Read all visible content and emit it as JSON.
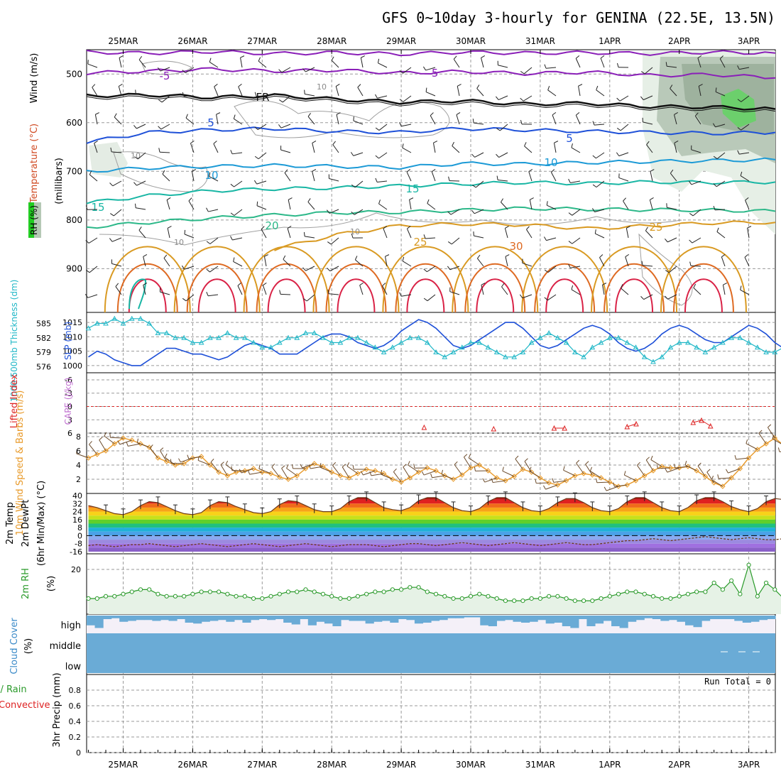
{
  "title": "GFS 0~10day 3-hourly for GENINA (22.5E, 13.5N)",
  "chart_data": {
    "type": "meteogram",
    "x": {
      "date_labels": [
        "25MAR",
        "26MAR",
        "27MAR",
        "28MAR",
        "29MAR",
        "30MAR",
        "31MAR",
        "1APR",
        "2APR",
        "3APR"
      ],
      "start": "2025-03-24T12:00",
      "step_hours": 3
    },
    "panels": [
      {
        "name": "upper-air",
        "labels": {
          "wind": "Wind (m/s)",
          "temperature": "Temperature (°C)",
          "rh": "RH (%)",
          "axis": "(millibars)"
        },
        "ylim": [
          450,
          990
        ],
        "yticks": [
          500,
          600,
          700,
          800,
          900
        ],
        "isotherms": [
          {
            "temp": -5,
            "label": "-5",
            "color": "#8a1fb8",
            "levels": [
              455,
              457,
              454,
              458,
              456,
              459,
              455,
              457,
              456,
              458,
              455,
              457
            ]
          },
          {
            "temp": -5,
            "label": "-5",
            "color": "#8a1fb8",
            "levels": [
              498,
              494,
              490,
              494,
              492,
              498,
              495,
              499,
              496,
              503,
              501,
              508
            ]
          },
          {
            "temp": 0,
            "label": "FR",
            "color": "#111111",
            "levels": [
              545,
              543,
              548,
              544,
              552,
              558,
              555,
              562,
              560,
              567,
              568,
              572
            ]
          },
          {
            "temp": 5,
            "label": "5",
            "color": "#1e50d8",
            "levels": [
              640,
              620,
              615,
              612,
              618,
              620,
              612,
              615,
              618,
              620,
              622,
              620
            ]
          },
          {
            "temp": 10,
            "label": "10",
            "color": "#1c9ad6",
            "levels": [
              700,
              693,
              690,
              688,
              690,
              692,
              684,
              685,
              682,
              680,
              678,
              676
            ]
          },
          {
            "temp": 15,
            "label": "15",
            "color": "#18b6a4",
            "levels": [
              765,
              750,
              740,
              736,
              734,
              730,
              726,
              723,
              725,
              722,
              723,
              722
            ]
          },
          {
            "temp": 20,
            "label": "20",
            "color": "#2cb889",
            "levels": [
              815,
              805,
              796,
              790,
              785,
              784,
              780,
              776,
              778,
              779,
              780,
              782
            ]
          },
          {
            "temp": 25,
            "label": "25",
            "color": "#d99a22",
            "levels": [
              null,
              null,
              null,
              860,
              830,
              812,
              808,
              810,
              818,
              812,
              806,
              805
            ]
          },
          {
            "temp": 30,
            "label": "30",
            "color": "#de6a22",
            "levels": []
          }
        ],
        "contour_labels": [
          "10",
          "10",
          "10",
          "10"
        ]
      },
      {
        "name": "slp-thickness",
        "labels": {
          "slp": "SLP (mb)",
          "thickness": "1000-500mb Thickness (dm)"
        },
        "slp_ticks": [
          1000,
          1005,
          1010,
          1015
        ],
        "thickness_ticks": [
          576,
          579,
          582,
          585
        ],
        "slp_mb": [
          1003,
          1005,
          1004,
          1002,
          1001,
          1000,
          1000,
          1002,
          1004,
          1006,
          1006,
          1005,
          1004,
          1004,
          1003,
          1002,
          1003,
          1005,
          1007,
          1008,
          1007,
          1006,
          1004,
          1004,
          1004,
          1006,
          1008,
          1010,
          1011,
          1011,
          1010,
          1008,
          1007,
          1006,
          1007,
          1009,
          1012,
          1014,
          1016,
          1015,
          1013,
          1010,
          1007,
          1006,
          1007,
          1009,
          1011,
          1013,
          1015,
          1015,
          1013,
          1010,
          1007,
          1006,
          1007,
          1009,
          1011,
          1013,
          1014,
          1013,
          1011,
          1008,
          1006,
          1005,
          1006,
          1008,
          1011,
          1013,
          1014,
          1013,
          1011,
          1009,
          1008,
          1008,
          1010,
          1012,
          1014,
          1013,
          1011,
          1008,
          1006,
          1005,
          1005,
          1006
        ],
        "thickness_dm": [
          584,
          585,
          585,
          586,
          585,
          586,
          586,
          585,
          583,
          583,
          582,
          582,
          581,
          581,
          582,
          582,
          583,
          582,
          582,
          581,
          580,
          580,
          581,
          582,
          582,
          583,
          583,
          582,
          581,
          581,
          582,
          582,
          581,
          580,
          579,
          580,
          581,
          582,
          582,
          581,
          579,
          578,
          579,
          580,
          581,
          581,
          580,
          579,
          578,
          578,
          579,
          581,
          582,
          583,
          582,
          581,
          579,
          578,
          580,
          581,
          582,
          582,
          581,
          580,
          578,
          577,
          578,
          580,
          581,
          581,
          580,
          579,
          580,
          581,
          582,
          582,
          581,
          580,
          579,
          579,
          580,
          581,
          582,
          583
        ]
      },
      {
        "name": "stability",
        "labels": {
          "lifted_index": "Lifted Index",
          "cape": "CAPE (J/kg)"
        },
        "li_ticks": [
          "6",
          "3",
          "0",
          "-3",
          "-6"
        ],
        "cape_jkg": [
          {
            "day": 4.33,
            "value": 0
          },
          {
            "day": 5.33,
            "value": 0
          },
          {
            "day": 6.2,
            "value": 0
          },
          {
            "day": 6.35,
            "value": 0
          },
          {
            "day": 7.25,
            "value": 0
          },
          {
            "day": 7.38,
            "value": 0
          },
          {
            "day": 8.2,
            "value": 0
          },
          {
            "day": 8.32,
            "value": 0
          },
          {
            "day": 8.45,
            "value": 0
          }
        ]
      },
      {
        "name": "wind10m",
        "labels": {
          "speed": "10m Wind Speed & Barbs (m/s)"
        },
        "ylim": [
          0,
          8.5
        ],
        "yticks": [
          2,
          4,
          6,
          8
        ],
        "speed_ms": [
          5.0,
          5.5,
          6.0,
          7.0,
          7.8,
          7.5,
          7.0,
          6.5,
          5.0,
          4.5,
          4.0,
          4.2,
          5.0,
          5.2,
          4.0,
          3.0,
          2.5,
          3.0,
          3.2,
          3.5,
          3.0,
          2.8,
          2.3,
          2.0,
          2.5,
          3.5,
          4.2,
          3.8,
          3.0,
          2.5,
          2.2,
          2.8,
          3.4,
          3.2,
          2.8,
          2.0,
          1.6,
          2.2,
          3.0,
          3.6,
          3.2,
          2.5,
          2.0,
          2.6,
          3.6,
          4.0,
          3.2,
          2.2,
          1.8,
          2.4,
          3.4,
          3.0,
          2.2,
          1.5,
          1.2,
          1.8,
          2.5,
          2.8,
          2.6,
          2.2,
          1.6,
          1.0,
          1.2,
          1.8,
          2.5,
          3.2,
          3.8,
          3.6,
          3.6,
          3.8,
          3.2,
          2.4,
          1.5,
          1.0,
          2.2,
          3.5,
          5.0,
          6.2,
          7.0,
          7.8,
          6.8,
          6.0,
          5.0,
          4.5
        ]
      },
      {
        "name": "temp2m",
        "labels": {
          "temp": "2m Temp",
          "dewpt": "2m DewPt",
          "minmax": "(6hr Min/Max) (°C)"
        },
        "ylim": [
          -16,
          40
        ],
        "yticks": [
          40,
          32,
          24,
          16,
          8,
          0,
          -8,
          -16
        ],
        "temp_c": [
          30,
          28,
          25,
          22,
          21,
          24,
          30,
          34,
          33,
          29,
          25,
          22,
          21,
          23,
          30,
          34,
          33,
          29,
          26,
          23,
          22,
          24,
          31,
          35,
          34,
          30,
          26,
          24,
          24,
          27,
          34,
          38,
          38,
          33,
          28,
          26,
          25,
          28,
          35,
          38,
          38,
          33,
          28,
          25,
          24,
          27,
          34,
          38,
          38,
          33,
          28,
          25,
          24,
          27,
          33,
          37,
          37,
          33,
          28,
          25,
          24,
          27,
          34,
          38,
          38,
          33,
          28,
          25,
          24,
          28,
          35,
          38,
          38,
          34,
          29,
          26,
          24,
          27,
          34,
          37,
          36,
          32,
          27,
          25
        ],
        "dewpt_c": [
          -10,
          -9,
          -10,
          -11,
          -10,
          -9,
          -9,
          -8,
          -9,
          -10,
          -11,
          -10,
          -9,
          -8,
          -9,
          -10,
          -11,
          -10,
          -9,
          -8,
          -9,
          -10,
          -11,
          -10,
          -9,
          -8,
          -9,
          -10,
          -11,
          -10,
          -9,
          -9,
          -9,
          -10,
          -11,
          -10,
          -9,
          -8,
          -8,
          -9,
          -10,
          -9,
          -8,
          -7,
          -8,
          -9,
          -10,
          -9,
          -8,
          -7,
          -8,
          -9,
          -10,
          -9,
          -8,
          -7,
          -8,
          -9,
          -9,
          -8,
          -7,
          -6,
          -5,
          -5,
          -4,
          -3,
          -4,
          -5,
          -4,
          -3,
          -2,
          -1,
          -2,
          -3,
          -4,
          -3,
          -2,
          -3,
          -4,
          -4,
          -3,
          -4,
          -5,
          -5
        ]
      },
      {
        "name": "rh2m",
        "labels": {
          "rh": "2m RH (%)"
        },
        "ylim": [
          0,
          27
        ],
        "yticks": [
          20
        ],
        "rh_pct": [
          7,
          7,
          8,
          8,
          9,
          10,
          11,
          11,
          9,
          8,
          8,
          8,
          9,
          10,
          10,
          10,
          9,
          8,
          8,
          7,
          7,
          8,
          9,
          10,
          10,
          11,
          10,
          9,
          8,
          7,
          7,
          8,
          9,
          10,
          10,
          11,
          11,
          12,
          12,
          10,
          9,
          8,
          7,
          7,
          8,
          9,
          8,
          7,
          6,
          6,
          6,
          7,
          7,
          8,
          8,
          7,
          6,
          6,
          6,
          7,
          8,
          9,
          10,
          10,
          9,
          8,
          7,
          7,
          8,
          9,
          10,
          10,
          11,
          11,
          10,
          9,
          8,
          8,
          9,
          11,
          11,
          10,
          12,
          14
        ],
        "rh_extra": [
          {
            "day": 8.5,
            "value": 14
          },
          {
            "day": 8.75,
            "value": 15
          },
          {
            "day": 9.0,
            "value": 22
          },
          {
            "day": 9.25,
            "value": 14
          },
          {
            "day": 9.5,
            "value": 7
          }
        ]
      },
      {
        "name": "cloud",
        "labels": {
          "cloud": "Cloud Cover (%)",
          "high": "high",
          "middle": "middle",
          "low": "low"
        },
        "high_pct": [
          55,
          70,
          20,
          15,
          35,
          30,
          25,
          25,
          30,
          25,
          30,
          20,
          40,
          45,
          35,
          30,
          25,
          35,
          25,
          40,
          25,
          20,
          25,
          20,
          40,
          50,
          20,
          55,
          35,
          45,
          60,
          25,
          30,
          30,
          45,
          35,
          30,
          40,
          20,
          25,
          45,
          40,
          30,
          25,
          15,
          15,
          10,
          10,
          55,
          60,
          30,
          25,
          35,
          40,
          35,
          25,
          45,
          40,
          60,
          70,
          20,
          60,
          45,
          30,
          60,
          70,
          35,
          25,
          15,
          20,
          30,
          25,
          35,
          55,
          65,
          30,
          20,
          20,
          20,
          30,
          40,
          35,
          25,
          20
        ],
        "middle_pct": 100,
        "low_pct": 100
      },
      {
        "name": "precip",
        "labels": {
          "precip": "3hr Precip (mm)",
          "legend_total": "Total / Rain",
          "legend_conv": "Convective",
          "run_total": "Run Total = 0"
        },
        "ylim": [
          0,
          1
        ],
        "yticks": [
          "0",
          "0.2",
          "0.4",
          "0.6",
          "0.8"
        ],
        "values_mm": []
      }
    ],
    "colors": {
      "purple": "#8a1fb8",
      "black": "#111111",
      "blue": "#1e50d8",
      "sky": "#1c9ad6",
      "teal": "#18b6a4",
      "green": "#2cb889",
      "gold": "#d99a22",
      "orange": "#de6a22",
      "red": "#d92246",
      "cyan": "#1fb7c7",
      "rh_green": "#2a9a2a",
      "wind_orange": "#e89a2a",
      "cloud_blue": "#6aabd6",
      "li_red": "#dd2222"
    }
  }
}
